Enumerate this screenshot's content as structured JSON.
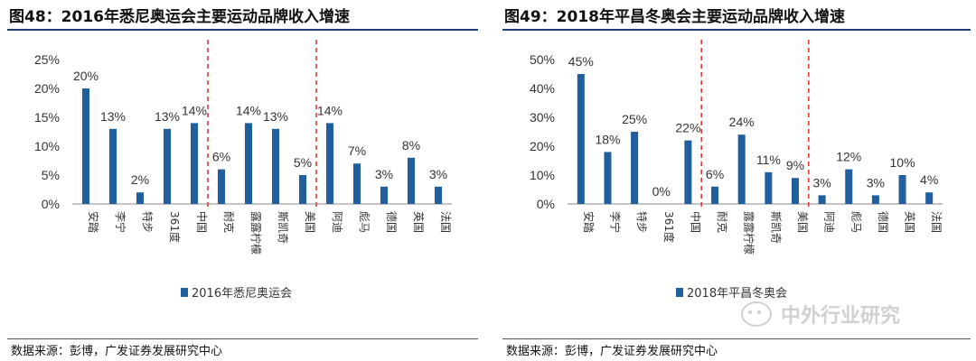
{
  "charts": [
    {
      "title": "图48：2016年悉尼奥运会主要运动品牌收入增速",
      "source": "数据来源：彭博，广发证券发展研究中心"
    },
    {
      "title": "图49：2018年平昌冬奥会主要运动品牌收入增速",
      "source": "数据来源：彭博，广发证券发展研究中心"
    }
  ],
  "watermark": {
    "text": "中外行业研究",
    "icon": "wechat-icon"
  },
  "chart_data": [
    {
      "type": "bar",
      "categories": [
        "安踏",
        "李宁",
        "特步",
        "361度",
        "中国",
        "耐克",
        "露露柠檬",
        "斯凯奇",
        "美国",
        "阿迪",
        "彪马",
        "德国",
        "英国",
        "法国"
      ],
      "series": [
        {
          "name": "2016年悉尼奥运会",
          "values": [
            20,
            13,
            2,
            13,
            14,
            6,
            14,
            13,
            5,
            14,
            7,
            3,
            8,
            3
          ]
        }
      ],
      "value_labels": [
        "20%",
        "13%",
        "2%",
        "13%",
        "14%",
        "6%",
        "14%",
        "13%",
        "5%",
        "14%",
        "7%",
        "3%",
        "8%",
        "3%"
      ],
      "ylim": [
        0,
        25
      ],
      "yticks": [
        "0%",
        "5%",
        "10%",
        "15%",
        "20%",
        "25%"
      ],
      "separators_after": [
        4,
        8
      ],
      "legend": "bottom",
      "color": "#1f5f9e"
    },
    {
      "type": "bar",
      "categories": [
        "安踏",
        "李宁",
        "特步",
        "361度",
        "中国",
        "耐克",
        "露露柠檬",
        "斯凯奇",
        "美国",
        "阿迪",
        "彪马",
        "德国",
        "英国",
        "法国"
      ],
      "series": [
        {
          "name": "2018年平昌冬奥会",
          "values": [
            45,
            18,
            25,
            0,
            22,
            6,
            24,
            11,
            9,
            3,
            12,
            3,
            10,
            4
          ]
        }
      ],
      "value_labels": [
        "45%",
        "18%",
        "25%",
        "0%",
        "22%",
        "6%",
        "24%",
        "11%",
        "9%",
        "3%",
        "12%",
        "3%",
        "10%",
        "4%"
      ],
      "ylim": [
        0,
        50
      ],
      "yticks": [
        "0%",
        "10%",
        "20%",
        "30%",
        "40%",
        "50%"
      ],
      "separators_after": [
        4,
        8
      ],
      "legend": "bottom",
      "color": "#1f5f9e"
    }
  ]
}
